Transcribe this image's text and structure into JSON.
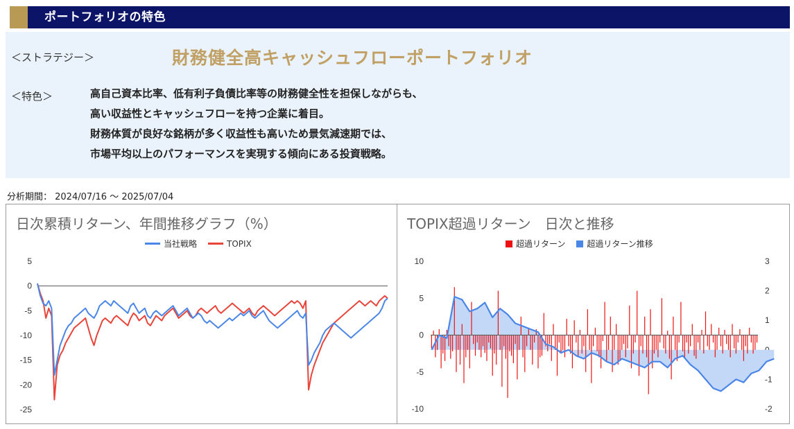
{
  "header": {
    "title": "ポートフォリオの特色"
  },
  "strategy": {
    "label": "＜ストラテジー＞",
    "name": "財務健全高キャッシュフローポートフォリオ"
  },
  "features": {
    "label": "＜特色＞",
    "lines": [
      "高自己資本比率、低有利子負債比率等の財務健全性を担保しながらも、",
      "高い収益性とキャッシュフローを持つ企業に着目。",
      "財務体質が良好な銘柄が多く収益性も高いため景気減速期では、",
      "市場平均以上のパフォーマンスを実現する傾向にある投資戦略。"
    ]
  },
  "period": {
    "text": "分析期間： 2024/07/16 ～ 2025/07/04"
  },
  "colors": {
    "strategy": "#4a86e8",
    "topix": "#e8443a",
    "excess_bar": "#ee1111",
    "excess_trend": "#4a86e8",
    "trend_fill": "#c3d7f7",
    "header": "#0b1466",
    "accent": "#b89a55",
    "strategy_name": "#c0a064",
    "panel": "#eaf3fb"
  },
  "chart_data": [
    {
      "type": "line",
      "title": "日次累積リターン、年間推移グラフ（%）",
      "legend_position": "top",
      "ylim": [
        -25,
        5
      ],
      "yticks": [
        5,
        0,
        -5,
        -10,
        -15,
        -20,
        -25
      ],
      "x_index": [
        0,
        2,
        4,
        6,
        8,
        10,
        12,
        14,
        16,
        18,
        20,
        22,
        24,
        26,
        28,
        30,
        32,
        34,
        36,
        38,
        40,
        42,
        44,
        46,
        48,
        50,
        52,
        54,
        56,
        58,
        60,
        62,
        64,
        66,
        68,
        70,
        72,
        74,
        76,
        78,
        80,
        82,
        84,
        86,
        88,
        90,
        92,
        94,
        96,
        98,
        100,
        102,
        104,
        106,
        108,
        110,
        112,
        114,
        116,
        118,
        120,
        122,
        124,
        126,
        128,
        130,
        132,
        134,
        136,
        138,
        140,
        142,
        144,
        146,
        148,
        150,
        152,
        154,
        156,
        158,
        160,
        162,
        164,
        166,
        168,
        170,
        172,
        174,
        176,
        178,
        180,
        182,
        184,
        186,
        188,
        190,
        192,
        194,
        196,
        198,
        200,
        202,
        204,
        206,
        208,
        210,
        212,
        214,
        216,
        218,
        220,
        222,
        224,
        226,
        228,
        230,
        232,
        234,
        236,
        238,
        240,
        242,
        244,
        246,
        248
      ],
      "series": [
        {
          "name": "当社戦略",
          "values": [
            0.5,
            -2.0,
            -3.5,
            -4.0,
            -3.0,
            -4.5,
            -18.0,
            -15.0,
            -12.0,
            -10.5,
            -9.0,
            -8.0,
            -7.5,
            -6.5,
            -6.0,
            -5.5,
            -5.0,
            -4.5,
            -5.5,
            -6.0,
            -6.5,
            -5.5,
            -4.0,
            -3.5,
            -3.0,
            -3.5,
            -4.0,
            -3.0,
            -3.5,
            -4.0,
            -4.5,
            -5.0,
            -5.5,
            -4.0,
            -3.5,
            -4.5,
            -5.5,
            -5.0,
            -4.5,
            -6.0,
            -6.5,
            -5.5,
            -5.0,
            -5.5,
            -6.0,
            -5.5,
            -5.0,
            -4.5,
            -4.0,
            -5.0,
            -6.0,
            -5.5,
            -5.0,
            -4.5,
            -5.5,
            -6.5,
            -6.0,
            -5.5,
            -6.0,
            -7.0,
            -7.5,
            -7.0,
            -7.5,
            -8.0,
            -8.5,
            -8.0,
            -7.5,
            -7.0,
            -6.5,
            -7.0,
            -6.5,
            -6.0,
            -5.5,
            -6.0,
            -5.5,
            -5.0,
            -6.0,
            -6.5,
            -6.0,
            -5.5,
            -5.0,
            -6.0,
            -7.0,
            -7.5,
            -8.0,
            -8.5,
            -8.0,
            -7.5,
            -7.0,
            -6.5,
            -6.0,
            -5.5,
            -5.0,
            -6.0,
            -6.5,
            -5.5,
            -16.0,
            -15.0,
            -13.5,
            -12.5,
            -11.5,
            -10.0,
            -9.0,
            -8.5,
            -8.0,
            -7.5,
            -8.0,
            -8.5,
            -9.0,
            -9.5,
            -10.0,
            -10.5,
            -10.0,
            -9.5,
            -9.0,
            -8.5,
            -8.0,
            -7.5,
            -7.0,
            -6.5,
            -6.0,
            -5.5,
            -4.5,
            -3.0,
            -2.5
          ]
        },
        {
          "name": "TOPIX",
          "values": [
            0.5,
            -1.5,
            -3.0,
            -6.5,
            -4.5,
            -6.0,
            -23.0,
            -16.0,
            -14.0,
            -13.0,
            -11.5,
            -10.5,
            -9.5,
            -8.5,
            -8.0,
            -7.5,
            -7.0,
            -6.5,
            -8.5,
            -10.5,
            -12.0,
            -10.0,
            -8.5,
            -7.0,
            -6.5,
            -7.0,
            -7.5,
            -6.5,
            -6.0,
            -6.5,
            -7.0,
            -7.5,
            -8.0,
            -6.5,
            -5.5,
            -6.0,
            -7.0,
            -6.5,
            -6.0,
            -7.5,
            -8.0,
            -7.0,
            -6.0,
            -6.5,
            -7.0,
            -6.0,
            -5.5,
            -5.0,
            -4.5,
            -5.5,
            -6.5,
            -6.0,
            -5.5,
            -5.0,
            -6.0,
            -6.5,
            -6.0,
            -5.0,
            -4.5,
            -5.0,
            -5.5,
            -5.0,
            -4.5,
            -4.0,
            -5.0,
            -5.5,
            -5.0,
            -4.5,
            -4.0,
            -3.5,
            -4.0,
            -4.5,
            -5.0,
            -5.5,
            -5.0,
            -4.5,
            -5.5,
            -6.0,
            -5.0,
            -4.5,
            -4.0,
            -4.5,
            -5.0,
            -5.5,
            -6.0,
            -5.5,
            -5.0,
            -4.5,
            -4.0,
            -3.5,
            -3.0,
            -3.5,
            -3.0,
            -3.5,
            -4.5,
            -3.0,
            -21.0,
            -18.0,
            -16.0,
            -14.5,
            -13.0,
            -11.5,
            -10.5,
            -9.5,
            -8.5,
            -7.5,
            -7.0,
            -6.5,
            -6.0,
            -5.5,
            -5.0,
            -4.5,
            -4.0,
            -3.5,
            -3.0,
            -3.5,
            -4.0,
            -3.5,
            -3.0,
            -3.5,
            -4.0,
            -3.0,
            -2.5,
            -2.0,
            -2.5
          ]
        }
      ]
    },
    {
      "type": "bar+area",
      "title": "TOPIX超過リターン　日次と推移",
      "legend_position": "top",
      "ylim_left": [
        -10,
        10
      ],
      "yticks_left": [
        10,
        5,
        0,
        -5,
        -10
      ],
      "ylim_right": [
        -2,
        3
      ],
      "yticks_right": [
        3,
        2,
        1,
        0,
        -1,
        -2
      ],
      "bar_series": {
        "name": "超過リターン",
        "values": [
          -1.8,
          0.6,
          -3.0,
          -2.0,
          0.8,
          -4.5,
          -2.5,
          -3.5,
          0.7,
          -1.5,
          -3.2,
          -2.2,
          6.5,
          -5.0,
          -2.0,
          -4.0,
          1.5,
          -6.5,
          -3.0,
          -2.0,
          -4.5,
          4.5,
          -1.2,
          -2.8,
          -1.0,
          -2.0,
          -3.0,
          -1.5,
          -2.4,
          -3.5,
          -1.0,
          -1.8,
          -5.5,
          -2.5,
          -4.0,
          6.0,
          -2.0,
          -7.0,
          -1.5,
          -3.2,
          -8.5,
          -2.2,
          -2.8,
          -3.8,
          -1.2,
          -6.0,
          -2.0,
          2.5,
          -3.0,
          -5.0,
          -1.5,
          1.0,
          -2.0,
          -4.0,
          -1.0,
          0.8,
          -4.5,
          -3.0,
          -2.8,
          3.0,
          -1.5,
          -2.2,
          -1.2,
          -3.5,
          1.5,
          -2.0,
          -5.5,
          -1.0,
          -2.5,
          -2.0,
          -3.0,
          2.2,
          -1.5,
          -2.5,
          -4.5,
          2.0,
          -1.0,
          -3.0,
          0.7,
          -2.5,
          -1.5,
          -5.0,
          3.5,
          -2.0,
          -6.5,
          -1.5,
          1.0,
          -2.2,
          -3.0,
          -4.5,
          -0.8,
          4.5,
          -3.5,
          -2.0,
          2.5,
          -5.0,
          -2.0,
          1.5,
          -4.0,
          -3.5,
          -2.0,
          -1.2,
          -3.0,
          -1.8,
          4.0,
          -4.5,
          -2.5,
          -1.0,
          6.0,
          -5.5,
          -1.5,
          -2.5,
          2.5,
          -3.0,
          -8.0,
          3.5,
          -4.5,
          -2.5,
          -2.0,
          -3.0,
          -1.0,
          5.0,
          -1.8,
          -2.5,
          0.6,
          -3.2,
          -6.0,
          2.5,
          -2.0,
          -3.5,
          -1.0,
          4.5,
          -2.2,
          -3.0,
          -1.0,
          -2.5,
          -1.5,
          1.5,
          -2.8,
          -3.2,
          -1.0,
          -2.0,
          0.7,
          -2.5,
          3.2,
          -1.5,
          -2.0,
          1.5,
          -1.0,
          -3.0,
          -2.0,
          1.0,
          -1.5,
          -2.5,
          0.7,
          -1.2,
          -2.0,
          -3.0,
          1.5,
          -1.8,
          -2.5,
          -1.0,
          0.8,
          -2.0,
          -3.5,
          -1.5,
          -2.5,
          1.0,
          -1.0,
          -2.5,
          -2.0,
          -1.0
        ]
      },
      "trend_series": {
        "name": "超過リターン推移",
        "x_index": [
          0,
          4,
          8,
          12,
          16,
          20,
          24,
          28,
          32,
          36,
          40,
          44,
          48,
          52,
          56,
          60,
          64,
          68,
          72,
          76,
          80,
          84,
          88,
          92,
          96,
          100,
          104,
          108,
          112,
          116,
          120,
          124,
          128,
          132,
          136,
          140,
          144,
          148,
          152,
          156,
          160,
          164,
          168,
          172,
          176,
          180
        ],
        "values": [
          0.0,
          0.5,
          0.4,
          1.8,
          1.7,
          1.3,
          1.4,
          1.6,
          1.1,
          1.4,
          1.2,
          0.9,
          0.8,
          0.7,
          0.6,
          0.2,
          0.1,
          -0.1,
          0.0,
          -0.2,
          -0.3,
          -0.1,
          -0.2,
          -0.4,
          -0.5,
          -0.3,
          -0.4,
          -0.5,
          -0.6,
          -0.4,
          -0.4,
          -0.6,
          -0.3,
          -0.2,
          -0.5,
          -0.7,
          -1.0,
          -1.3,
          -1.4,
          -1.2,
          -1.0,
          -1.1,
          -0.8,
          -0.7,
          -0.4,
          -0.3
        ]
      }
    }
  ]
}
